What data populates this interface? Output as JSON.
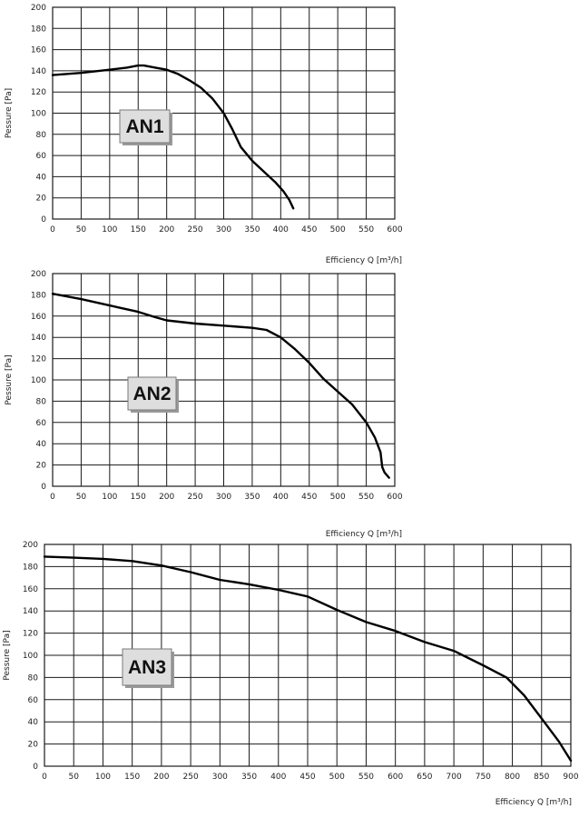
{
  "chart_data": [
    {
      "type": "line",
      "badge": "AN1",
      "xlabel": "Efficiency Q [m³/h]",
      "ylabel": "Pessure [Pa]",
      "xlim": [
        0,
        600
      ],
      "ylim": [
        0,
        200
      ],
      "x_ticks": [
        0,
        50,
        100,
        150,
        200,
        250,
        300,
        350,
        400,
        450,
        500,
        550,
        600
      ],
      "y_ticks": [
        0,
        20,
        40,
        60,
        80,
        100,
        120,
        140,
        160,
        180,
        200
      ],
      "grid": true,
      "series": [
        {
          "x": [
            0,
            50,
            100,
            130,
            150,
            160,
            180,
            200,
            220,
            240,
            260,
            280,
            300,
            315,
            330,
            350,
            370,
            390,
            405,
            415,
            422
          ],
          "y": [
            136,
            138,
            141,
            143,
            145,
            145,
            143,
            141,
            137,
            131,
            124,
            114,
            100,
            85,
            68,
            55,
            45,
            35,
            26,
            18,
            10
          ]
        }
      ]
    },
    {
      "type": "line",
      "badge": "AN2",
      "xlabel": "Efficiency Q [m³/h]",
      "ylabel": "Pessure [Pa]",
      "xlim": [
        0,
        600
      ],
      "ylim": [
        0,
        200
      ],
      "x_ticks": [
        0,
        50,
        100,
        150,
        200,
        250,
        300,
        350,
        400,
        450,
        500,
        550,
        600
      ],
      "y_ticks": [
        0,
        20,
        40,
        60,
        80,
        100,
        120,
        140,
        160,
        180,
        200
      ],
      "grid": true,
      "series": [
        {
          "x": [
            0,
            50,
            100,
            150,
            180,
            200,
            250,
            300,
            350,
            375,
            400,
            425,
            450,
            475,
            500,
            525,
            550,
            565,
            575,
            578,
            582,
            590
          ],
          "y": [
            181,
            176,
            170,
            164,
            159,
            156,
            153,
            151,
            149,
            147,
            140,
            129,
            116,
            101,
            89,
            77,
            60,
            46,
            32,
            18,
            13,
            8
          ]
        }
      ]
    },
    {
      "type": "line",
      "badge": "AN3",
      "xlabel": "Efficiency Q [m³/h]",
      "ylabel": "Pessure [Pa]",
      "xlim": [
        0,
        900
      ],
      "ylim": [
        0,
        200
      ],
      "x_ticks": [
        0,
        50,
        100,
        150,
        200,
        250,
        300,
        350,
        400,
        450,
        500,
        550,
        600,
        650,
        700,
        750,
        800,
        850,
        900
      ],
      "y_ticks": [
        0,
        20,
        40,
        60,
        80,
        100,
        120,
        140,
        160,
        180,
        200
      ],
      "grid": true,
      "series": [
        {
          "x": [
            0,
            50,
            100,
            150,
            200,
            250,
            300,
            350,
            400,
            450,
            500,
            550,
            600,
            650,
            700,
            750,
            790,
            820,
            850,
            880,
            900
          ],
          "y": [
            189,
            188,
            187,
            185,
            181,
            175,
            168,
            164,
            159,
            153,
            141,
            130,
            122,
            112,
            104,
            91,
            80,
            64,
            43,
            22,
            5
          ]
        }
      ]
    }
  ]
}
